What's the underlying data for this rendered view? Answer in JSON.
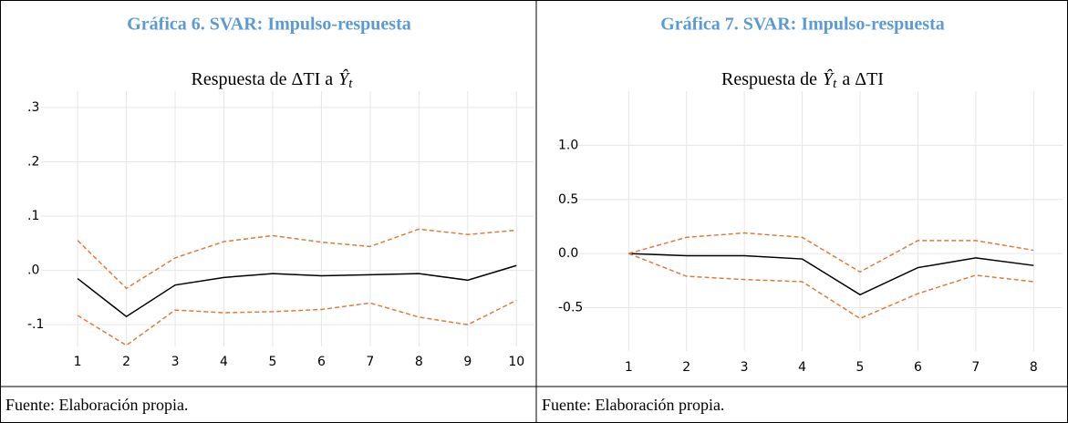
{
  "chart_data": [
    {
      "type": "line",
      "title": "Gráfica  6. SVAR: Impulso-respuesta",
      "subtitle": [
        {
          "text": "Respuesta de ΔTI a"
        },
        {
          "math": "Ŷ"
        },
        {
          "sub": "t"
        }
      ],
      "source": "Fuente: Elaboración propia.",
      "x": [
        1,
        2,
        3,
        4,
        5,
        6,
        7,
        8,
        9,
        10
      ],
      "xlim": [
        0.25,
        10.35
      ],
      "xticks": [
        1,
        2,
        3,
        4,
        5,
        6,
        7,
        8,
        9,
        10
      ],
      "ylim": [
        -0.14,
        0.33
      ],
      "yticks": [
        {
          "value": -0.1,
          "label": "-.1"
        },
        {
          "value": 0,
          "label": ".0"
        },
        {
          "value": 0.1,
          "label": ".1"
        },
        {
          "value": 0.2,
          "label": ".2"
        },
        {
          "value": 0.3,
          "label": ".3"
        }
      ],
      "grid": true,
      "series": [
        {
          "color": "#000000",
          "dashed": false,
          "values": [
            -0.015,
            -0.085,
            -0.027,
            -0.013,
            -0.006,
            -0.01,
            -0.008,
            -0.006,
            -0.018,
            0.009
          ]
        },
        {
          "color": "#e07b39",
          "dashed": true,
          "values": [
            0.055,
            -0.033,
            0.023,
            0.053,
            0.064,
            0.052,
            0.044,
            0.076,
            0.066,
            0.074
          ]
        },
        {
          "color": "#e07b39",
          "dashed": true,
          "values": [
            -0.083,
            -0.138,
            -0.073,
            -0.078,
            -0.076,
            -0.072,
            -0.06,
            -0.086,
            -0.1,
            -0.055
          ]
        }
      ]
    },
    {
      "type": "line",
      "title": "Gráfica  7. SVAR: Impulso-respuesta",
      "subtitle": [
        {
          "text": "Respuesta de"
        },
        {
          "math": "Ŷ"
        },
        {
          "sub": "t"
        },
        {
          "text": "a ΔTI"
        }
      ],
      "source": "Fuente: Elaboración propia.",
      "x": [
        1,
        2,
        3,
        4,
        5,
        6,
        7,
        8
      ],
      "xlim": [
        -0.25,
        8.5
      ],
      "xticks": [
        1,
        2,
        3,
        4,
        5,
        6,
        7,
        8
      ],
      "ylim": [
        -0.9,
        1.5
      ],
      "yticks": [
        -0.5,
        {
          "value": 0,
          "label": "0.0"
        },
        0.5,
        {
          "value": 1,
          "label": "1.0"
        }
      ],
      "grid": true,
      "series": [
        {
          "color": "#000000",
          "dashed": false,
          "values": [
            0,
            -0.02,
            -0.02,
            -0.05,
            -0.38,
            -0.13,
            -0.04,
            -0.11
          ]
        },
        {
          "color": "#e07b39",
          "dashed": true,
          "values": [
            0,
            0.15,
            0.19,
            0.15,
            -0.17,
            0.12,
            0.12,
            0.03
          ]
        },
        {
          "color": "#e07b39",
          "dashed": true,
          "values": [
            0,
            -0.21,
            -0.24,
            -0.26,
            -0.6,
            -0.37,
            -0.2,
            -0.26
          ]
        }
      ]
    }
  ]
}
